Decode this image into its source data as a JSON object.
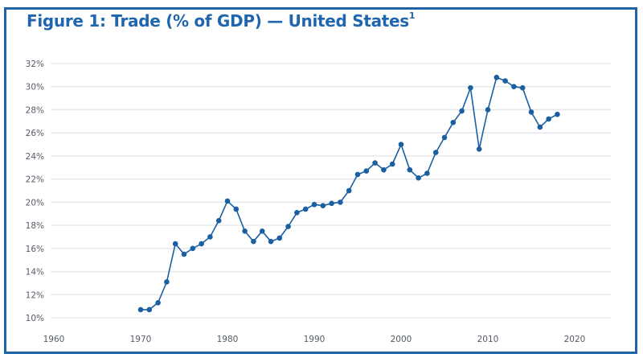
{
  "title": "Figure 1: Trade (% of GDP) — United States",
  "title_footnote": "1",
  "colors": {
    "frame": "#1f63aa",
    "title": "#1f66ae",
    "series": "#1b5fa3",
    "grid": "#e3e5e8",
    "tick_text": "#555b66"
  },
  "chart_data": {
    "type": "line",
    "title": "Figure 1: Trade (% of GDP) — United States",
    "xlabel": "",
    "ylabel": "",
    "xlim": [
      1960,
      2020
    ],
    "ylim": [
      10,
      32
    ],
    "grid": true,
    "legend": "none",
    "x_ticks": [
      1960,
      1970,
      1980,
      1990,
      2000,
      2010,
      2020
    ],
    "x_tick_labels": [
      "1960",
      "1970",
      "1980",
      "1990",
      "2000",
      "2010",
      "2020"
    ],
    "y_ticks": [
      10,
      12,
      14,
      16,
      18,
      20,
      22,
      24,
      26,
      28,
      30,
      32
    ],
    "y_tick_labels": [
      "10%",
      "12%",
      "14%",
      "16%",
      "18%",
      "20%",
      "22%",
      "24%",
      "26%",
      "28%",
      "30%",
      "32%"
    ],
    "series": [
      {
        "name": "Trade (% of GDP)",
        "x": [
          1970,
          1971,
          1972,
          1973,
          1974,
          1975,
          1976,
          1977,
          1978,
          1979,
          1980,
          1981,
          1982,
          1983,
          1984,
          1985,
          1986,
          1987,
          1988,
          1989,
          1990,
          1991,
          1992,
          1993,
          1994,
          1995,
          1996,
          1997,
          1998,
          1999,
          2000,
          2001,
          2002,
          2003,
          2004,
          2005,
          2006,
          2007,
          2008,
          2009,
          2010,
          2011,
          2012,
          2013,
          2014,
          2015,
          2016,
          2017,
          2018
        ],
        "values": [
          10.7,
          10.7,
          11.3,
          13.1,
          16.4,
          15.5,
          16.0,
          16.4,
          17.0,
          18.4,
          20.1,
          19.4,
          17.5,
          16.6,
          17.5,
          16.6,
          16.9,
          17.9,
          19.1,
          19.4,
          19.8,
          19.7,
          19.9,
          20.0,
          21.0,
          22.4,
          22.7,
          23.4,
          22.8,
          23.3,
          25.0,
          22.8,
          22.1,
          22.5,
          24.3,
          25.6,
          26.9,
          27.9,
          29.9,
          24.6,
          28.0,
          30.8,
          30.5,
          30.0,
          29.9,
          27.8,
          26.5,
          27.2,
          27.6
        ]
      }
    ]
  }
}
